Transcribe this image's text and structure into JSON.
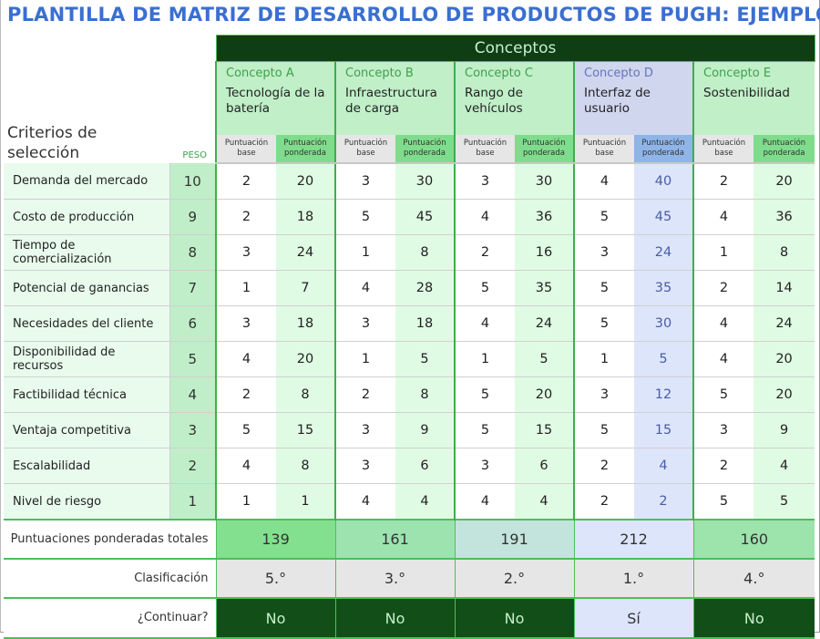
{
  "title": "PLANTILLA DE MATRIZ DE DESARROLLO DE PRODUCTOS DE PUGH: EJEMPLO",
  "header": {
    "concepts_caption": "Conceptos",
    "criteria_label": "Criterios de selección",
    "weight_label": "PESO",
    "base_label": "Puntuación base",
    "weighted_label": "Puntuación ponderada"
  },
  "concepts": [
    {
      "label": "Concepto A",
      "name": "Tecnología de la batería"
    },
    {
      "label": "Concepto B",
      "name": "Infraestructura de carga"
    },
    {
      "label": "Concepto C",
      "name": "Rango de vehículos"
    },
    {
      "label": "Concepto D",
      "name": "Interfaz de usuario"
    },
    {
      "label": "Concepto E",
      "name": "Sostenibilidad"
    }
  ],
  "rows": [
    {
      "criterion": "Demanda del mercado",
      "weight": 10,
      "scores": [
        [
          2,
          20
        ],
        [
          3,
          30
        ],
        [
          3,
          30
        ],
        [
          4,
          40
        ],
        [
          2,
          20
        ]
      ]
    },
    {
      "criterion": "Costo de producción",
      "weight": 9,
      "scores": [
        [
          2,
          18
        ],
        [
          5,
          45
        ],
        [
          4,
          36
        ],
        [
          5,
          45
        ],
        [
          4,
          36
        ]
      ]
    },
    {
      "criterion": "Tiempo de comercialización",
      "weight": 8,
      "scores": [
        [
          3,
          24
        ],
        [
          1,
          8
        ],
        [
          2,
          16
        ],
        [
          3,
          24
        ],
        [
          1,
          8
        ]
      ]
    },
    {
      "criterion": "Potencial de ganancias",
      "weight": 7,
      "scores": [
        [
          1,
          7
        ],
        [
          4,
          28
        ],
        [
          5,
          35
        ],
        [
          5,
          35
        ],
        [
          2,
          14
        ]
      ]
    },
    {
      "criterion": "Necesidades del cliente",
      "weight": 6,
      "scores": [
        [
          3,
          18
        ],
        [
          3,
          18
        ],
        [
          4,
          24
        ],
        [
          5,
          30
        ],
        [
          4,
          24
        ]
      ]
    },
    {
      "criterion": "Disponibilidad de recursos",
      "weight": 5,
      "scores": [
        [
          4,
          20
        ],
        [
          1,
          5
        ],
        [
          1,
          5
        ],
        [
          1,
          5
        ],
        [
          4,
          20
        ]
      ]
    },
    {
      "criterion": "Factibilidad técnica",
      "weight": 4,
      "scores": [
        [
          2,
          8
        ],
        [
          2,
          8
        ],
        [
          5,
          20
        ],
        [
          3,
          12
        ],
        [
          5,
          20
        ]
      ]
    },
    {
      "criterion": "Ventaja competitiva",
      "weight": 3,
      "scores": [
        [
          5,
          15
        ],
        [
          3,
          9
        ],
        [
          5,
          15
        ],
        [
          5,
          15
        ],
        [
          3,
          9
        ]
      ]
    },
    {
      "criterion": "Escalabilidad",
      "weight": 2,
      "scores": [
        [
          4,
          8
        ],
        [
          3,
          6
        ],
        [
          3,
          6
        ],
        [
          2,
          4
        ],
        [
          2,
          4
        ]
      ]
    },
    {
      "criterion": "Nivel de riesgo",
      "weight": 1,
      "scores": [
        [
          1,
          1
        ],
        [
          4,
          4
        ],
        [
          4,
          4
        ],
        [
          2,
          2
        ],
        [
          5,
          5
        ]
      ]
    }
  ],
  "totals": {
    "label": "Puntuaciones ponderadas totales",
    "values": [
      139,
      161,
      191,
      212,
      160
    ]
  },
  "ranking": {
    "label": "Clasificación",
    "values": [
      "5.°",
      "3.°",
      "2.°",
      "1.°",
      "4.°"
    ]
  },
  "proceed": {
    "label": "¿Continuar?",
    "values": [
      "No",
      "No",
      "No",
      "Sí",
      "No"
    ]
  },
  "colors": {
    "title": "#3a6fd0",
    "header_dark": "#0f3d14",
    "concept_bg": "#c0efc8",
    "highlight_bg": "#d0d6ee",
    "totals_bg": [
      "#82e08e",
      "#9de3b0",
      "#c3e4dc",
      "#dde5fb",
      "#9de3ac"
    ]
  }
}
